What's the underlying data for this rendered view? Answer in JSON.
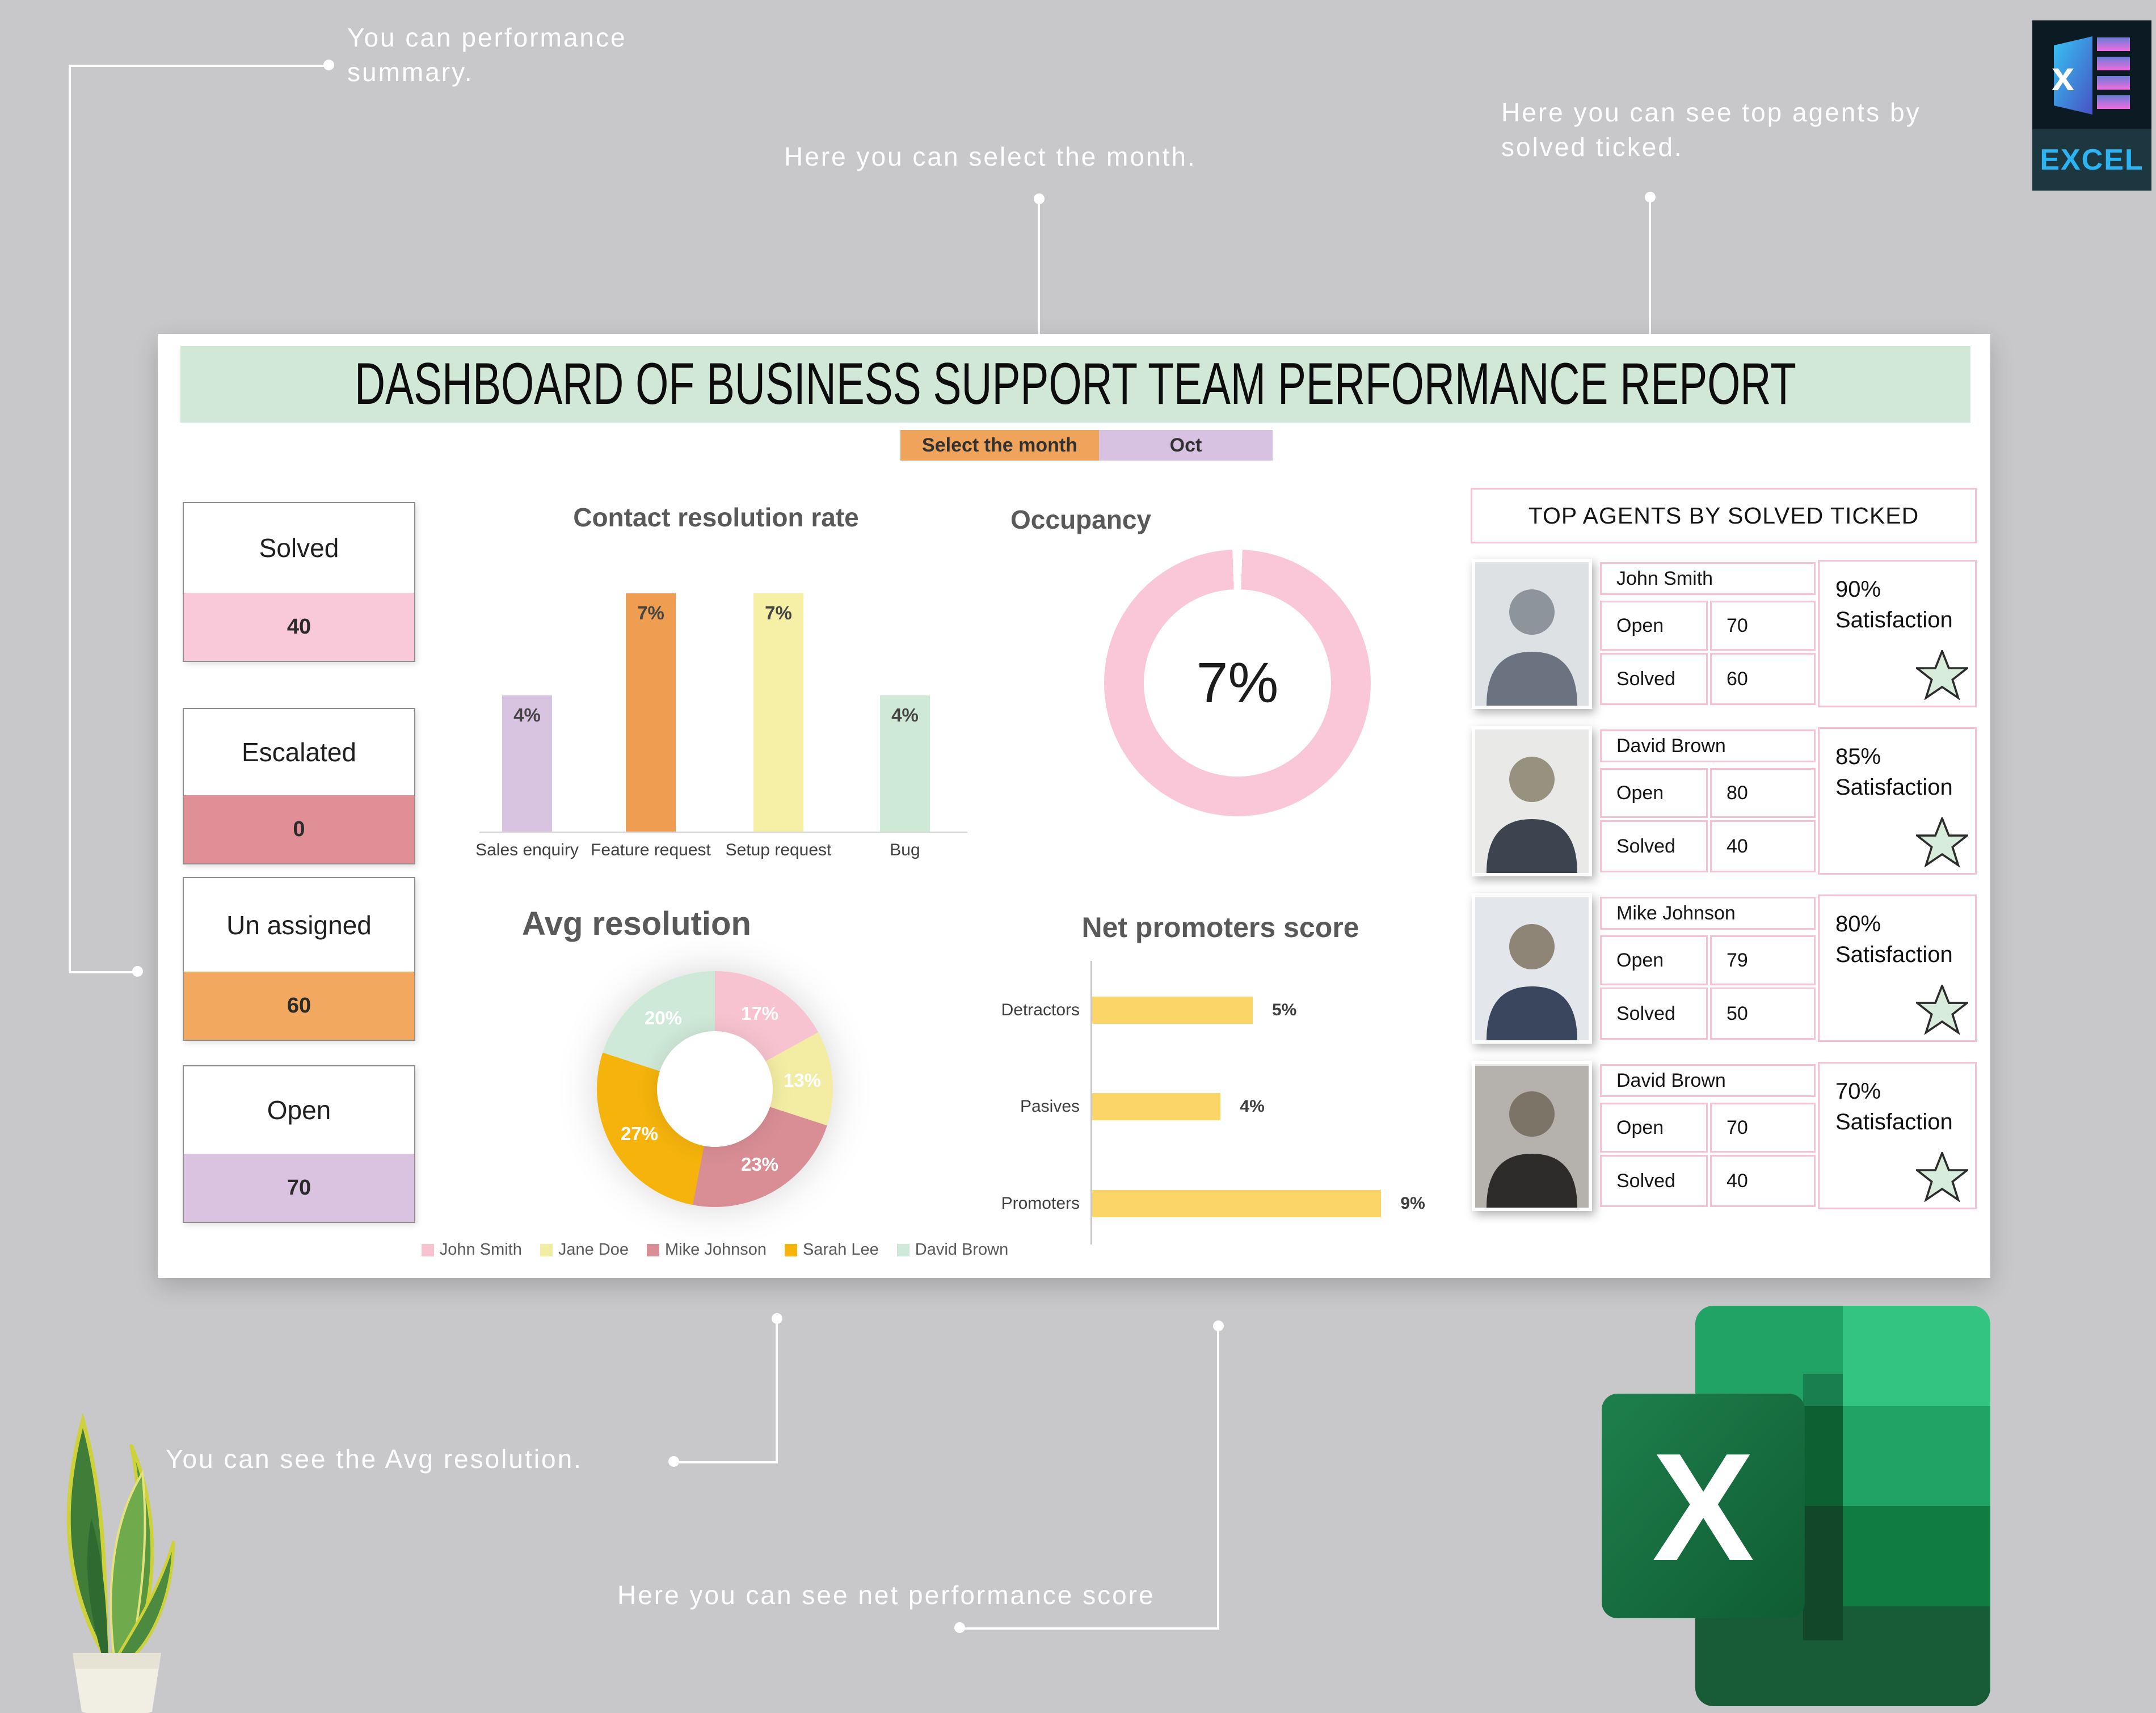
{
  "colors": {
    "background": "#c8c8ca",
    "card": "#ffffff",
    "banner_green": "#d2e8d7",
    "accent_orange": "#f0a35a",
    "accent_lavender": "#d8c2e2",
    "pink_border": "#f7c0d3",
    "nps_yellow": "#fcd569",
    "chart_title_gray": "#595959",
    "badge_cyan": "#2bb3f3",
    "excel_green": "#1e7145"
  },
  "annotations": {
    "performance_summary": "You can performance summary.",
    "select_month": "Here you can select the month.",
    "top_agents": "Here you can see top agents by solved ticked.",
    "avg_resolution": "You can see the Avg resolution.",
    "net_performance": "Here you can see net performance score"
  },
  "dashboard": {
    "title": "DASHBOARD OF BUSINESS SUPPORT TEAM PERFORMANCE REPORT",
    "month": {
      "label": "Select the month",
      "value": "Oct",
      "label_bg": "#f0a35a",
      "value_bg": "#d8c2e2"
    },
    "kpis": [
      {
        "label": "Solved",
        "value": "40",
        "color": "#fac9d9"
      },
      {
        "label": "Escalated",
        "value": "0",
        "color": "#e08f96"
      },
      {
        "label": "Un assigned",
        "value": "60",
        "color": "#f2a95f"
      },
      {
        "label": "Open",
        "value": "70",
        "color": "#d9c3e0"
      }
    ]
  },
  "chart_data": [
    {
      "type": "bar",
      "title": "Contact resolution rate",
      "categories": [
        "Sales enquiry",
        "Feature request",
        "Setup request",
        "Bug"
      ],
      "values": [
        4,
        7,
        7,
        4
      ],
      "value_labels": [
        "4%",
        "7%",
        "7%",
        "4%"
      ],
      "colors": [
        "#d8c3e1",
        "#ef9d50",
        "#f6f0a7",
        "#cfe9d7"
      ],
      "xlabel": "",
      "ylabel": "",
      "ylim": [
        0,
        7.2
      ],
      "grid": false,
      "legend": false
    },
    {
      "type": "donut",
      "title": "Occupancy",
      "center_label": "7%",
      "value": 7,
      "slices": [
        {
          "color": "#ffffff",
          "pct": 0.6
        },
        {
          "color": "#f9c7d8",
          "pct": 98.8
        },
        {
          "color": "#ffffff",
          "pct": 0.6
        }
      ]
    },
    {
      "type": "donut",
      "title": "Avg resolution",
      "legend_position": "bottom",
      "slices": [
        {
          "name": "John Smith",
          "pct": 17,
          "label": "17%",
          "color": "#f8c3d0"
        },
        {
          "name": "Jane Doe",
          "pct": 13,
          "label": "13%",
          "color": "#f3eda4"
        },
        {
          "name": "Mike Johnson",
          "pct": 23,
          "label": "23%",
          "color": "#d98e95"
        },
        {
          "name": "Sarah Lee",
          "pct": 27,
          "label": "27%",
          "color": "#f5b30c"
        },
        {
          "name": "David Brown",
          "pct": 20,
          "label": "20%",
          "color": "#cfe9d8"
        }
      ]
    },
    {
      "type": "bar-horizontal",
      "title": "Net promoters score",
      "categories": [
        "Detractors",
        "Pasives",
        "Promoters"
      ],
      "values": [
        5,
        4,
        9
      ],
      "value_labels": [
        "5%",
        "4%",
        "9%"
      ],
      "bar_color": "#fcd569",
      "xlim": [
        0,
        10
      ],
      "grid": false
    }
  ],
  "top_agents": {
    "title": "TOP AGENTS BY SOLVED TICKED",
    "open_label": "Open",
    "solved_label": "Solved",
    "satisfaction_word": "Satisfaction",
    "rows": [
      {
        "name": "John Smith",
        "open": "70",
        "solved": "60",
        "satisfaction": "90%"
      },
      {
        "name": "David Brown",
        "open": "80",
        "solved": "40",
        "satisfaction": "85%"
      },
      {
        "name": "Mike Johnson",
        "open": "79",
        "solved": "50",
        "satisfaction": "80%"
      },
      {
        "name": "David Brown",
        "open": "70",
        "solved": "40",
        "satisfaction": "70%"
      }
    ]
  },
  "excel_badge": {
    "letter": "x",
    "label": "EXCEL"
  },
  "excel_logo": {
    "letter": "X"
  }
}
